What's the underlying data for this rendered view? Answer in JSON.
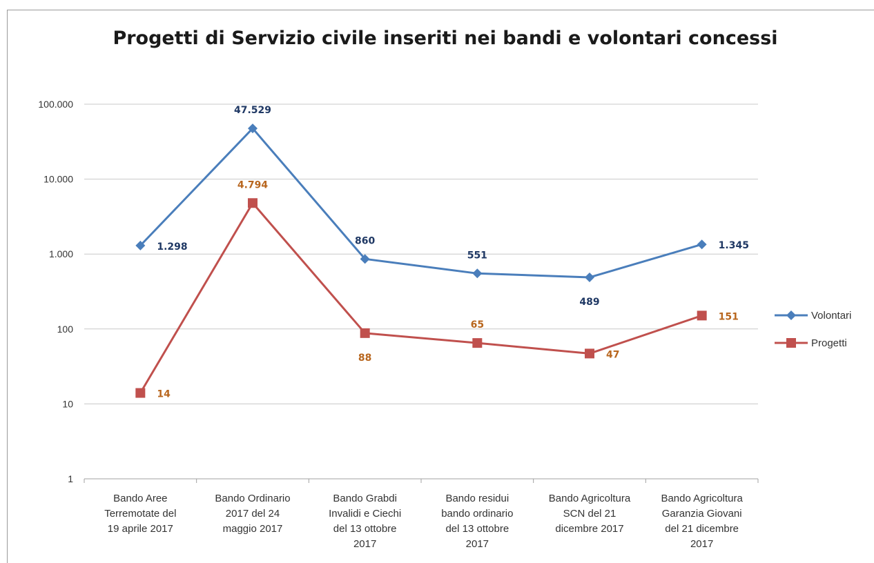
{
  "chart_data": {
    "type": "line",
    "title": "Progetti di Servizio civile inseriti nei bandi e volontari concessi",
    "y_scale": "log",
    "ylim": [
      1,
      100000
    ],
    "y_ticks": [
      1,
      10,
      100,
      1000,
      10000,
      100000
    ],
    "y_tick_labels": [
      "1",
      "10",
      "100",
      "1.000",
      "10.000",
      "100.000"
    ],
    "gridlines": true,
    "legend_position": "right",
    "categories": [
      [
        "Bando Aree",
        "Terremotate del",
        "19 aprile 2017"
      ],
      [
        "Bando Ordinario",
        "2017 del 24",
        "maggio 2017"
      ],
      [
        "Bando Grabdi",
        "Invalidi e Ciechi",
        "del 13 ottobre",
        "2017"
      ],
      [
        "Bando residui",
        "bando ordinario",
        "del 13 ottobre",
        "2017"
      ],
      [
        "Bando Agricoltura",
        "SCN del 21",
        "dicembre 2017"
      ],
      [
        "Bando Agricoltura",
        "Garanzia Giovani",
        "del 21 dicembre",
        "2017"
      ]
    ],
    "series": [
      {
        "name": "Volontari",
        "color": "#4a7ebb",
        "marker": "diamond",
        "values": [
          1298,
          47529,
          860,
          551,
          489,
          1345
        ],
        "labels": [
          "1.298",
          "47.529",
          "860",
          "551",
          "489",
          "1.345"
        ],
        "label_color": "#1f3864",
        "label_positions": [
          "right",
          "above",
          "above",
          "above",
          "below",
          "right"
        ]
      },
      {
        "name": "Progetti",
        "color": "#c0504d",
        "marker": "square",
        "values": [
          14,
          4794,
          88,
          65,
          47,
          151
        ],
        "labels": [
          "14",
          "4.794",
          "88",
          "65",
          "47",
          "151"
        ],
        "label_color": "#b8661e",
        "label_positions": [
          "right",
          "above",
          "below",
          "above",
          "right",
          "right"
        ]
      }
    ]
  }
}
